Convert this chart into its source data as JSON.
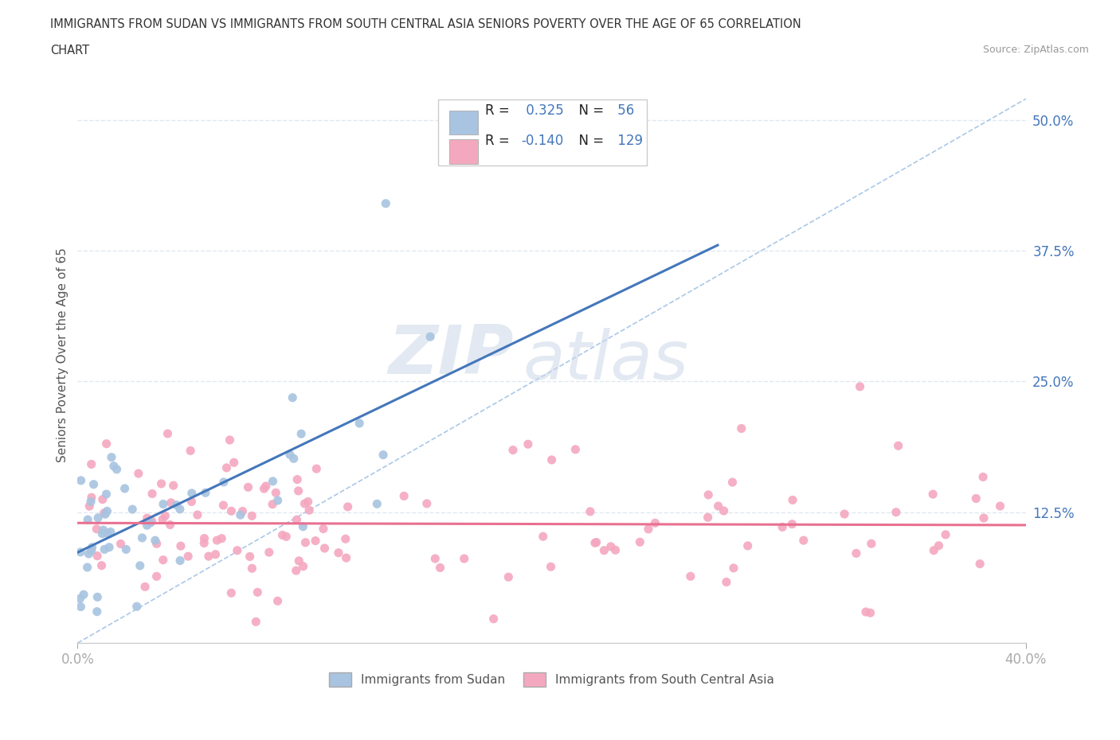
{
  "title_line1": "IMMIGRANTS FROM SUDAN VS IMMIGRANTS FROM SOUTH CENTRAL ASIA SENIORS POVERTY OVER THE AGE OF 65 CORRELATION",
  "title_line2": "CHART",
  "source_text": "Source: ZipAtlas.com",
  "ylabel": "Seniors Poverty Over the Age of 65",
  "xlim": [
    0.0,
    0.4
  ],
  "ylim": [
    0.0,
    0.55
  ],
  "x_tick_labels": [
    "0.0%",
    "40.0%"
  ],
  "y_tick_labels_right": [
    "12.5%",
    "25.0%",
    "37.5%",
    "50.0%"
  ],
  "y_tick_values_right": [
    0.125,
    0.25,
    0.375,
    0.5
  ],
  "sudan_color": "#a8c4e0",
  "south_asia_color": "#f4a8c0",
  "sudan_line_color": "#4477bb",
  "south_asia_line_color": "#e87090",
  "right_axis_color": "#4477bb",
  "sudan_R": 0.325,
  "sudan_N": 56,
  "south_asia_R": -0.14,
  "south_asia_N": 129,
  "watermark_zip": "ZIP",
  "watermark_atlas": "atlas",
  "background_color": "#ffffff",
  "grid_color": "#e0e8f0",
  "grid_linestyle": "--",
  "diag_line_color": "#aac8e8",
  "legend_edge_color": "#cccccc",
  "bottom_legend_label1": "Immigrants from Sudan",
  "bottom_legend_label2": "Immigrants from South Central Asia"
}
